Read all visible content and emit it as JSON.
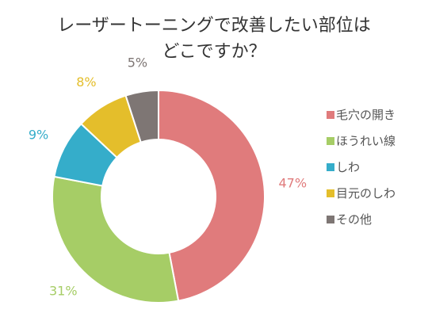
{
  "chart_data": {
    "type": "pie",
    "variant": "donut",
    "title_lines": [
      "レーザートーニングで改善したい部位は",
      "どこですか？"
    ],
    "categories": [
      "毛穴の開き",
      "ほうれい線",
      "しわ",
      "目元のしわ",
      "その他"
    ],
    "values": [
      47,
      31,
      9,
      8,
      5
    ],
    "value_labels": [
      "47%",
      "31%",
      "9%",
      "8%",
      "5%"
    ],
    "colors": [
      "#e07b7c",
      "#a6cd66",
      "#35adca",
      "#e4be2b",
      "#7e7674"
    ],
    "legend_position": "right",
    "start": "top",
    "direction": "clockwise"
  }
}
